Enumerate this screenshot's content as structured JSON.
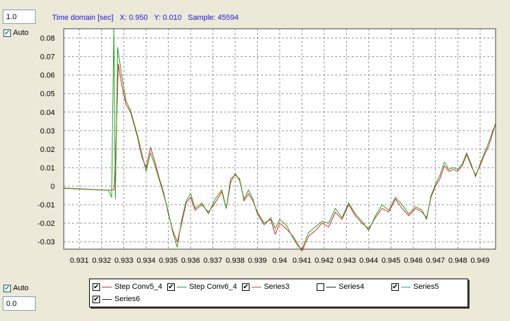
{
  "controls": {
    "max_value": "1.0",
    "min_value": "0.0",
    "auto_top_label": "Auto",
    "auto_bottom_label": "Auto",
    "auto_top_checked": true,
    "auto_bottom_checked": true
  },
  "status": {
    "text": "Time domain [sec]   X: 0.950   Y: 0.010   Sample: 45594"
  },
  "legend": {
    "items": [
      {
        "name": "Step Conv5_4",
        "color": "#e02020",
        "checked": true
      },
      {
        "name": "Step Conv6_4",
        "color": "#20a020",
        "checked": true
      },
      {
        "name": "Series3",
        "color": "#d05010",
        "checked": true
      },
      {
        "name": "Series4",
        "color": "#202020",
        "checked": false
      },
      {
        "name": "Series5",
        "color": "#20a0a0",
        "checked": true
      },
      {
        "name": "Series6",
        "color": "#202020",
        "checked": true
      }
    ]
  },
  "chart_data": {
    "type": "line",
    "title": "",
    "xlabel": "",
    "ylabel": "",
    "xlim": [
      0.9303,
      0.9497
    ],
    "ylim": [
      -0.034,
      0.085
    ],
    "grid": true,
    "cursor_x": 0.9497,
    "x_ticks": [
      "0.931",
      "0.932",
      "0.933",
      "0.934",
      "0.935",
      "0.936",
      "0.937",
      "0.938",
      "0.939",
      "0.94",
      "0.941",
      "0.942",
      "0.943",
      "0.944",
      "0.945",
      "0.946",
      "0.947",
      "0.948",
      "0.949"
    ],
    "y_ticks": [
      "0.08",
      "0.07",
      "0.06",
      "0.05",
      "0.04",
      "0.03",
      "0.02",
      "0.01",
      "0",
      "-0.01",
      "-0.02",
      "-0.03"
    ],
    "series": [
      {
        "name": "Step Conv5_4",
        "color": "#e02020",
        "points": [
          [
            0.9303,
            -0.0012
          ],
          [
            0.931,
            -0.0015
          ],
          [
            0.9318,
            -0.002
          ],
          [
            0.9324,
            -0.0022
          ],
          [
            0.93255,
            -0.002
          ],
          [
            0.93262,
            0.012
          ],
          [
            0.93275,
            0.066
          ],
          [
            0.9329,
            0.055
          ],
          [
            0.9331,
            0.044
          ],
          [
            0.9333,
            0.04
          ],
          [
            0.9336,
            0.027
          ],
          [
            0.9338,
            0.016
          ],
          [
            0.934,
            0.01
          ],
          [
            0.9342,
            0.021
          ],
          [
            0.9344,
            0.013
          ],
          [
            0.9346,
            0.004
          ],
          [
            0.9348,
            -0.004
          ],
          [
            0.935,
            -0.015
          ],
          [
            0.9352,
            -0.024
          ],
          [
            0.9354,
            -0.03
          ],
          [
            0.9356,
            -0.02
          ],
          [
            0.9358,
            -0.009
          ],
          [
            0.936,
            -0.006
          ],
          [
            0.9362,
            -0.013
          ],
          [
            0.9365,
            -0.01
          ],
          [
            0.9368,
            -0.014
          ],
          [
            0.9371,
            -0.009
          ],
          [
            0.9374,
            -0.003
          ],
          [
            0.9376,
            -0.012
          ],
          [
            0.9378,
            0.004
          ],
          [
            0.938,
            0.006
          ],
          [
            0.9382,
            0.004
          ],
          [
            0.9384,
            -0.008
          ],
          [
            0.9386,
            -0.004
          ],
          [
            0.9388,
            -0.008
          ],
          [
            0.939,
            -0.014
          ],
          [
            0.9393,
            -0.02
          ],
          [
            0.9396,
            -0.018
          ],
          [
            0.9398,
            -0.026
          ],
          [
            0.94,
            -0.02
          ],
          [
            0.9403,
            -0.023
          ],
          [
            0.9406,
            -0.027
          ],
          [
            0.9408,
            -0.031
          ],
          [
            0.941,
            -0.035
          ],
          [
            0.9413,
            -0.027
          ],
          [
            0.9416,
            -0.024
          ],
          [
            0.9419,
            -0.02
          ],
          [
            0.9422,
            -0.022
          ],
          [
            0.9425,
            -0.014
          ],
          [
            0.9428,
            -0.018
          ],
          [
            0.9431,
            -0.01
          ],
          [
            0.9434,
            -0.016
          ],
          [
            0.9437,
            -0.02
          ],
          [
            0.944,
            -0.023
          ],
          [
            0.9443,
            -0.017
          ],
          [
            0.9446,
            -0.012
          ],
          [
            0.9449,
            -0.014
          ],
          [
            0.9452,
            -0.007
          ],
          [
            0.9455,
            -0.012
          ],
          [
            0.9458,
            -0.016
          ],
          [
            0.9461,
            -0.012
          ],
          [
            0.9464,
            -0.014
          ],
          [
            0.9466,
            -0.017
          ],
          [
            0.9468,
            -0.006
          ],
          [
            0.947,
            0.0
          ],
          [
            0.9472,
            0.004
          ],
          [
            0.9474,
            0.011
          ],
          [
            0.9476,
            0.008
          ],
          [
            0.9478,
            0.009
          ],
          [
            0.948,
            0.008
          ],
          [
            0.9482,
            0.011
          ],
          [
            0.9484,
            0.017
          ],
          [
            0.9486,
            0.011
          ],
          [
            0.9488,
            0.006
          ],
          [
            0.949,
            0.011
          ],
          [
            0.9492,
            0.017
          ],
          [
            0.9494,
            0.022
          ],
          [
            0.9496,
            0.03
          ],
          [
            0.9497,
            0.034
          ]
        ]
      },
      {
        "name": "Step Conv6_4",
        "color": "#20a020",
        "points": [
          [
            0.9303,
            -0.001
          ],
          [
            0.931,
            -0.0014
          ],
          [
            0.9318,
            -0.0019
          ],
          [
            0.9323,
            -0.0021
          ],
          [
            0.93245,
            -0.006
          ],
          [
            0.93255,
            0.085
          ],
          [
            0.93262,
            -0.007
          ],
          [
            0.93272,
            0.075
          ],
          [
            0.9329,
            0.06
          ],
          [
            0.9331,
            0.046
          ],
          [
            0.9333,
            0.041
          ],
          [
            0.9336,
            0.028
          ],
          [
            0.9338,
            0.018
          ],
          [
            0.934,
            0.008
          ],
          [
            0.9342,
            0.018
          ],
          [
            0.9344,
            0.011
          ],
          [
            0.9346,
            0.003
          ],
          [
            0.9348,
            -0.005
          ],
          [
            0.935,
            -0.014
          ],
          [
            0.9352,
            -0.025
          ],
          [
            0.9354,
            -0.033
          ],
          [
            0.9356,
            -0.018
          ],
          [
            0.9358,
            -0.008
          ],
          [
            0.936,
            -0.004
          ],
          [
            0.9362,
            -0.012
          ],
          [
            0.9365,
            -0.009
          ],
          [
            0.9368,
            -0.015
          ],
          [
            0.9371,
            -0.007
          ],
          [
            0.9374,
            -0.002
          ],
          [
            0.9376,
            -0.012
          ],
          [
            0.9378,
            0.002
          ],
          [
            0.938,
            0.007
          ],
          [
            0.9382,
            0.003
          ],
          [
            0.9384,
            -0.007
          ],
          [
            0.9386,
            -0.002
          ],
          [
            0.9388,
            -0.007
          ],
          [
            0.939,
            -0.015
          ],
          [
            0.9393,
            -0.021
          ],
          [
            0.9396,
            -0.017
          ],
          [
            0.9398,
            -0.023
          ],
          [
            0.94,
            -0.018
          ],
          [
            0.9403,
            -0.021
          ],
          [
            0.9406,
            -0.028
          ],
          [
            0.9408,
            -0.032
          ],
          [
            0.941,
            -0.034
          ],
          [
            0.9413,
            -0.025
          ],
          [
            0.9416,
            -0.022
          ],
          [
            0.9419,
            -0.019
          ],
          [
            0.9422,
            -0.02
          ],
          [
            0.9425,
            -0.012
          ],
          [
            0.9428,
            -0.017
          ],
          [
            0.9431,
            -0.009
          ],
          [
            0.9434,
            -0.015
          ],
          [
            0.9437,
            -0.019
          ],
          [
            0.944,
            -0.024
          ],
          [
            0.9443,
            -0.016
          ],
          [
            0.9446,
            -0.01
          ],
          [
            0.9449,
            -0.013
          ],
          [
            0.9452,
            -0.006
          ],
          [
            0.9455,
            -0.01
          ],
          [
            0.9458,
            -0.015
          ],
          [
            0.9461,
            -0.011
          ],
          [
            0.9464,
            -0.013
          ],
          [
            0.9466,
            -0.018
          ],
          [
            0.9468,
            -0.005
          ],
          [
            0.947,
            0.001
          ],
          [
            0.9472,
            0.006
          ],
          [
            0.9474,
            0.013
          ],
          [
            0.9476,
            0.009
          ],
          [
            0.9478,
            0.01
          ],
          [
            0.948,
            0.009
          ],
          [
            0.9482,
            0.012
          ],
          [
            0.9484,
            0.018
          ],
          [
            0.9486,
            0.012
          ],
          [
            0.9488,
            0.005
          ],
          [
            0.949,
            0.012
          ],
          [
            0.9492,
            0.018
          ],
          [
            0.9494,
            0.024
          ],
          [
            0.9496,
            0.031
          ],
          [
            0.9497,
            0.033
          ]
        ]
      }
    ]
  }
}
